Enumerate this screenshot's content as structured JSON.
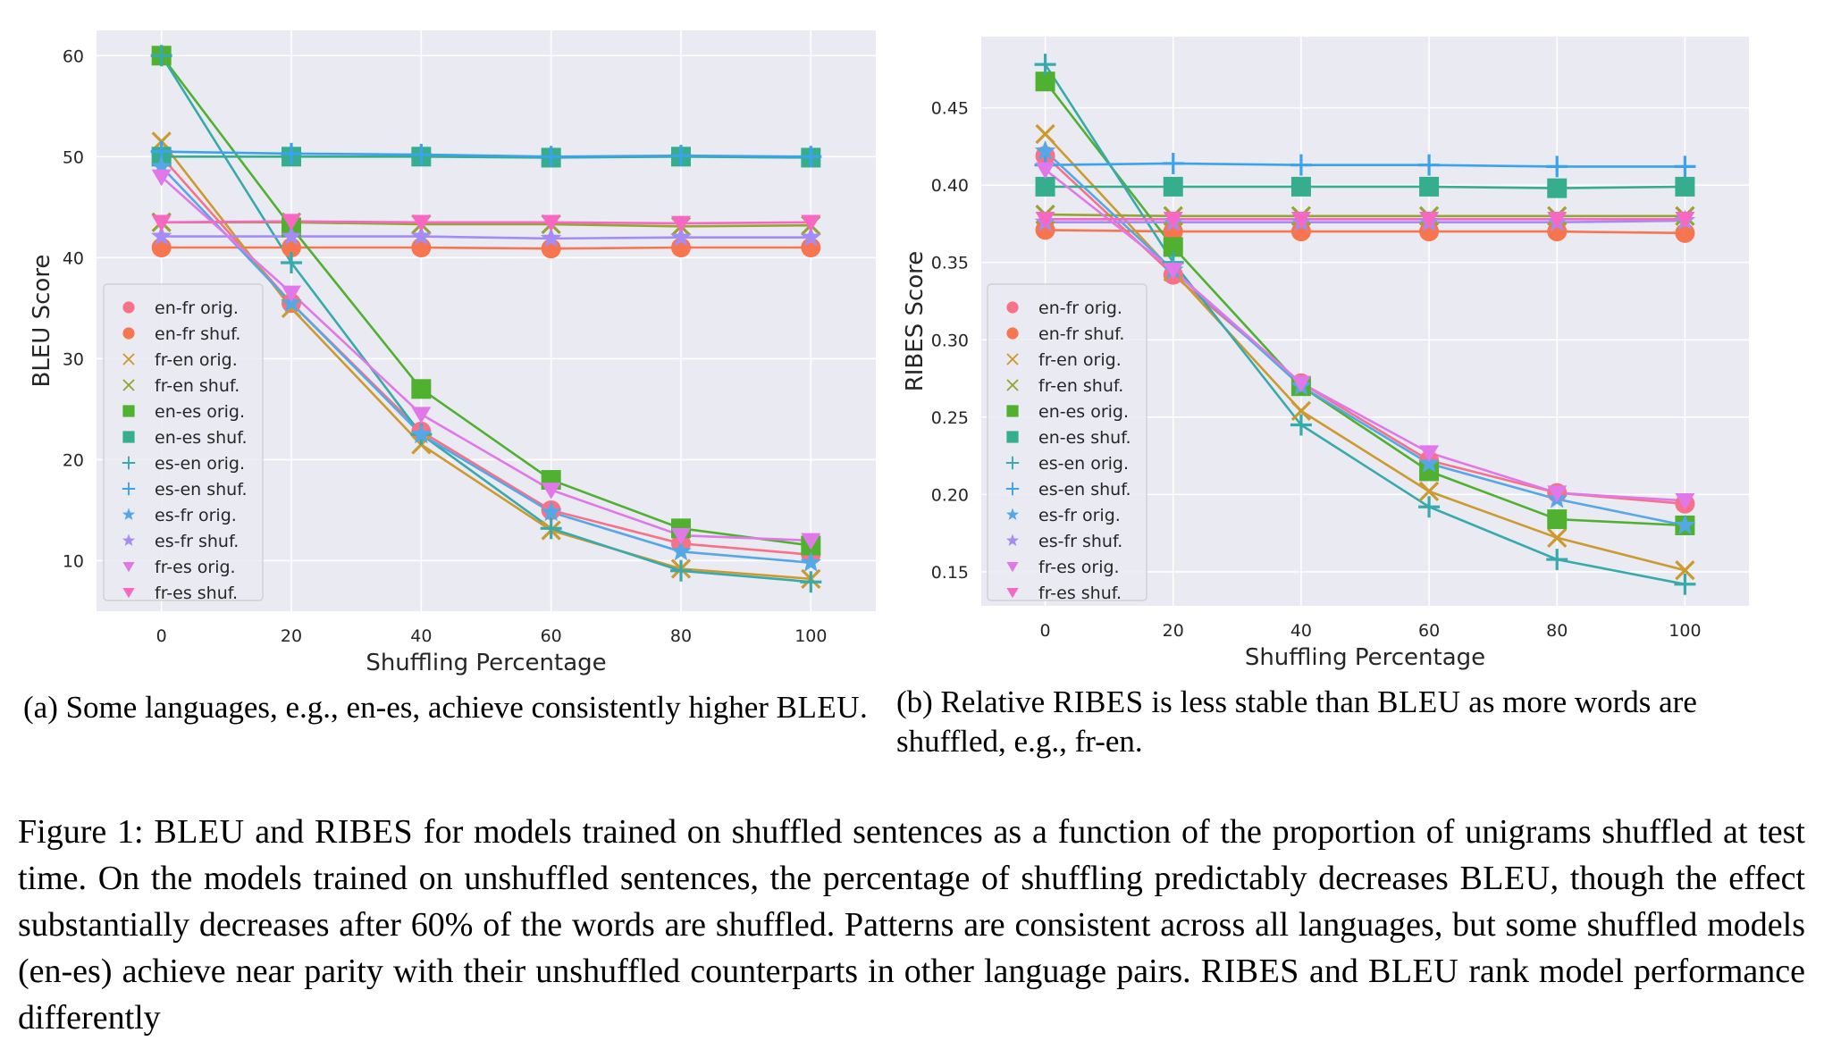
{
  "chart_data": [
    {
      "type": "line",
      "xlabel": "Shuffling Percentage",
      "ylabel": "BLEU Score",
      "x": [
        0,
        20,
        40,
        60,
        80,
        100
      ],
      "xlim": [
        -10,
        110
      ],
      "ylim": [
        5,
        62.5
      ],
      "xticks": [
        0,
        20,
        40,
        60,
        80,
        100
      ],
      "yticks": [
        10,
        20,
        30,
        40,
        50,
        60
      ],
      "grid": true,
      "legend_position": "center-left",
      "series": [
        {
          "name": "en-fr orig.",
          "color": "#f77189",
          "marker": "circle",
          "values": [
            50.0,
            35.5,
            22.8,
            15.0,
            11.7,
            10.6
          ]
        },
        {
          "name": "en-fr shuf.",
          "color": "#f7754f",
          "marker": "circle",
          "values": [
            41.0,
            41.0,
            41.0,
            40.9,
            41.0,
            41.0
          ]
        },
        {
          "name": "fr-en orig.",
          "color": "#cc9a2f",
          "marker": "x",
          "values": [
            51.5,
            35.0,
            21.5,
            13.0,
            9.2,
            8.2
          ]
        },
        {
          "name": "fr-en shuf.",
          "color": "#97a431",
          "marker": "x",
          "values": [
            43.5,
            43.5,
            43.3,
            43.3,
            43.1,
            43.2
          ]
        },
        {
          "name": "en-es orig.",
          "color": "#50b131",
          "marker": "square",
          "values": [
            60.0,
            43.0,
            27.0,
            18.0,
            13.2,
            11.5
          ]
        },
        {
          "name": "en-es shuf.",
          "color": "#36ad8c",
          "marker": "square",
          "values": [
            50.0,
            50.0,
            50.0,
            49.9,
            50.0,
            49.9
          ]
        },
        {
          "name": "es-en orig.",
          "color": "#38aaac",
          "marker": "plus",
          "values": [
            60.0,
            39.5,
            22.5,
            13.2,
            9.0,
            7.9
          ]
        },
        {
          "name": "es-en shuf.",
          "color": "#3ba3ec",
          "marker": "plus",
          "values": [
            50.5,
            50.3,
            50.2,
            50.0,
            50.1,
            50.0
          ]
        },
        {
          "name": "es-fr orig.",
          "color": "#55a8e6",
          "marker": "star",
          "values": [
            49.0,
            35.5,
            22.5,
            14.8,
            10.9,
            9.8
          ]
        },
        {
          "name": "es-fr shuf.",
          "color": "#a48cf4",
          "marker": "star",
          "values": [
            42.1,
            42.1,
            42.1,
            41.9,
            42.0,
            42.0
          ]
        },
        {
          "name": "fr-es orig.",
          "color": "#e178ea",
          "marker": "triangle-down",
          "values": [
            48.0,
            36.5,
            24.5,
            17.0,
            12.5,
            12.0
          ]
        },
        {
          "name": "fr-es shuf.",
          "color": "#f668c2",
          "marker": "triangle-down",
          "values": [
            43.5,
            43.6,
            43.5,
            43.5,
            43.4,
            43.5
          ]
        }
      ]
    },
    {
      "type": "line",
      "xlabel": "Shuffling Percentage",
      "ylabel": "RIBES Score",
      "x": [
        0,
        20,
        40,
        60,
        80,
        100
      ],
      "xlim": [
        -10,
        110
      ],
      "ylim": [
        0.128,
        0.496
      ],
      "xticks": [
        0,
        20,
        40,
        60,
        80,
        100
      ],
      "yticks": [
        0.15,
        0.2,
        0.25,
        0.3,
        0.35,
        0.4,
        0.45
      ],
      "ytick_labels": [
        "0.15",
        "0.20",
        "0.25",
        "0.30",
        "0.35",
        "0.40",
        "0.45"
      ],
      "grid": true,
      "legend_position": "lower-left",
      "series": [
        {
          "name": "en-fr orig.",
          "color": "#f77189",
          "marker": "circle",
          "values": [
            0.419,
            0.342,
            0.272,
            0.222,
            0.201,
            0.194
          ]
        },
        {
          "name": "en-fr shuf.",
          "color": "#f7754f",
          "marker": "circle",
          "values": [
            0.371,
            0.37,
            0.37,
            0.37,
            0.37,
            0.369
          ]
        },
        {
          "name": "fr-en orig.",
          "color": "#cc9a2f",
          "marker": "x",
          "values": [
            0.433,
            0.344,
            0.254,
            0.202,
            0.172,
            0.151
          ]
        },
        {
          "name": "fr-en shuf.",
          "color": "#97a431",
          "marker": "x",
          "values": [
            0.381,
            0.38,
            0.38,
            0.38,
            0.38,
            0.38
          ]
        },
        {
          "name": "en-es orig.",
          "color": "#50b131",
          "marker": "square",
          "values": [
            0.467,
            0.36,
            0.27,
            0.215,
            0.184,
            0.18
          ]
        },
        {
          "name": "en-es shuf.",
          "color": "#36ad8c",
          "marker": "square",
          "values": [
            0.399,
            0.399,
            0.399,
            0.399,
            0.398,
            0.399
          ]
        },
        {
          "name": "es-en orig.",
          "color": "#38aaac",
          "marker": "plus",
          "values": [
            0.478,
            0.35,
            0.245,
            0.192,
            0.158,
            0.142
          ]
        },
        {
          "name": "es-en shuf.",
          "color": "#3ba3ec",
          "marker": "plus",
          "values": [
            0.413,
            0.414,
            0.413,
            0.413,
            0.412,
            0.412
          ]
        },
        {
          "name": "es-fr orig.",
          "color": "#55a8e6",
          "marker": "star",
          "values": [
            0.422,
            0.345,
            0.27,
            0.22,
            0.197,
            0.18
          ]
        },
        {
          "name": "es-fr shuf.",
          "color": "#a48cf4",
          "marker": "star",
          "values": [
            0.376,
            0.376,
            0.376,
            0.376,
            0.376,
            0.377
          ]
        },
        {
          "name": "fr-es orig.",
          "color": "#e178ea",
          "marker": "triangle-down",
          "values": [
            0.41,
            0.345,
            0.272,
            0.227,
            0.201,
            0.196
          ]
        },
        {
          "name": "fr-es shuf.",
          "color": "#f668c2",
          "marker": "triangle-down",
          "values": [
            0.378,
            0.378,
            0.378,
            0.378,
            0.378,
            0.378
          ]
        }
      ]
    }
  ],
  "captions": {
    "a_part1": "(a) Some languages, e.g., en-es, achieve consistently higher ",
    "a_sc": "BLEU",
    "a_end": ".",
    "b_part1": "(b) Relative ",
    "b_sc1": "RIBES",
    "b_part2": " is less stable than ",
    "b_sc2": "BLEU",
    "b_part3": " as more words are shuffled, e.g., fr-en.",
    "fig_part1": "Figure 1: ",
    "fig_sc1": "BLEU",
    "fig_part2": " and ",
    "fig_sc2": "RIBES",
    "fig_part3": " for models trained on shuffled sentences as a function of the proportion of unigrams shuffled at test time. On the models trained on unshuffled sentences, the percentage of shuffling predictably decreases ",
    "fig_sc3": "BLEU",
    "fig_part4": ", though the effect substantially decreases after 60% of the words are shuffled. Patterns are consistent across all languages, but some shuffled models (en-es) achieve near parity with their unshuffled counterparts in other language pairs. ",
    "fig_sc4": "RIBES",
    "fig_part5": " and ",
    "fig_sc5": "BLEU",
    "fig_part6": " rank model performance differently"
  }
}
